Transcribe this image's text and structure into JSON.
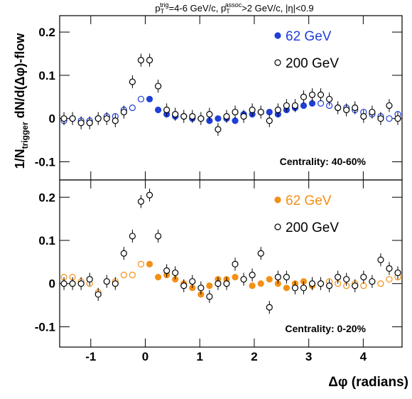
{
  "chart_data": [
    {
      "type": "scatter",
      "title": [
        "p",
        "T",
        "trig",
        "=4-6 GeV/c, p",
        "T",
        "assoc",
        ">2 GeV/c, |η|<0.9"
      ],
      "ylabel": [
        "1/N",
        "trigger",
        " dN/d(Δφ)-flow"
      ],
      "annotation": "Centrality: 40-60%",
      "ylim": [
        -0.142,
        0.238
      ],
      "yticks": [
        -0.1,
        0,
        0.1,
        0.2
      ],
      "x": [
        -1.492,
        -1.335,
        -1.178,
        -1.021,
        -0.864,
        -0.707,
        -0.55,
        -0.393,
        -0.236,
        -0.079,
        0.079,
        0.236,
        0.393,
        0.55,
        0.707,
        0.864,
        1.021,
        1.178,
        1.335,
        1.492,
        1.649,
        1.806,
        1.963,
        2.121,
        2.278,
        2.435,
        2.592,
        2.749,
        2.906,
        3.063,
        3.22,
        3.377,
        3.534,
        3.691,
        3.848,
        4.006,
        4.163,
        4.32,
        4.477,
        4.634
      ],
      "series": [
        {
          "name": "62 GeV",
          "color": "#1f3fd8",
          "marker": "filled",
          "error": 0.006,
          "values": [
            -0.005,
            0,
            -0.005,
            -0.005,
            0,
            0.005,
            0.005,
            0.02,
            0.025,
            0.045,
            0.045,
            0.02,
            0.01,
            0.005,
            0.005,
            0,
            0,
            -0.005,
            0,
            0,
            -0.005,
            0.01,
            0.01,
            0.015,
            0.015,
            0.01,
            0.02,
            0.025,
            0.03,
            0.035,
            0.035,
            0.03,
            0.025,
            0.025,
            0.02,
            0.015,
            0.01,
            0.005,
            0,
            0.01
          ]
        },
        {
          "name": "200 GeV",
          "color": "#000000",
          "marker": "open",
          "error": 0.015,
          "values": [
            0,
            0,
            -0.01,
            -0.01,
            0,
            0,
            -0.005,
            0.015,
            0.085,
            0.135,
            0.135,
            0.075,
            0.02,
            0.01,
            0.005,
            0.005,
            0,
            0.01,
            -0.025,
            0.005,
            0.015,
            0.005,
            0.02,
            0.015,
            -0.005,
            0.02,
            0.03,
            0.03,
            0.05,
            0.055,
            0.055,
            0.045,
            0.025,
            0.02,
            0.025,
            0.005,
            0.015,
            0,
            0.03,
            0
          ]
        }
      ]
    },
    {
      "type": "scatter",
      "annotation": "Centrality:  0-20%",
      "xlabel": "Δφ (radians)",
      "xlim": [
        -1.571,
        4.712
      ],
      "xticks": [
        -1,
        0,
        1,
        2,
        3,
        4
      ],
      "ylim": [
        -0.147,
        0.24
      ],
      "yticks": [
        -0.1,
        0,
        0.1,
        0.2
      ],
      "x": [
        -1.492,
        -1.335,
        -1.178,
        -1.021,
        -0.864,
        -0.707,
        -0.55,
        -0.393,
        -0.236,
        -0.079,
        0.079,
        0.236,
        0.393,
        0.55,
        0.707,
        0.864,
        1.021,
        1.178,
        1.335,
        1.492,
        1.649,
        1.806,
        1.963,
        2.121,
        2.278,
        2.435,
        2.592,
        2.749,
        2.906,
        3.063,
        3.22,
        3.377,
        3.534,
        3.691,
        3.848,
        4.006,
        4.163,
        4.32,
        4.477,
        4.634
      ],
      "series": [
        {
          "name": "62 GeV",
          "color": "#f39016",
          "marker": "filled",
          "error": 0.006,
          "values": [
            0.015,
            0.015,
            0.005,
            0,
            -0.02,
            0.005,
            0.005,
            0.02,
            0.02,
            0.045,
            0.045,
            0.015,
            0.02,
            0.01,
            0,
            -0.01,
            -0.025,
            -0.005,
            0.01,
            0.01,
            0.015,
            0.01,
            -0.005,
            0,
            0.01,
            0,
            -0.01,
            0,
            0.005,
            -0.005,
            0,
            0.005,
            0,
            -0.005,
            0,
            -0.005,
            0.005,
            0,
            0.01,
            0.015
          ]
        },
        {
          "name": "200 GeV",
          "color": "#000000",
          "marker": "open",
          "error": 0.015,
          "values": [
            0,
            0,
            0,
            0.01,
            -0.025,
            0.005,
            0,
            0.07,
            0.11,
            0.19,
            0.205,
            0.11,
            0.03,
            0.025,
            -0.005,
            0.005,
            -0.01,
            -0.03,
            0,
            0,
            0.045,
            0.01,
            0.02,
            0.07,
            -0.055,
            0.015,
            0.015,
            -0.01,
            -0.01,
            0,
            0,
            -0.005,
            0.015,
            0.01,
            -0.005,
            0.015,
            0.005,
            0.055,
            0.035,
            0.025
          ]
        }
      ]
    }
  ]
}
